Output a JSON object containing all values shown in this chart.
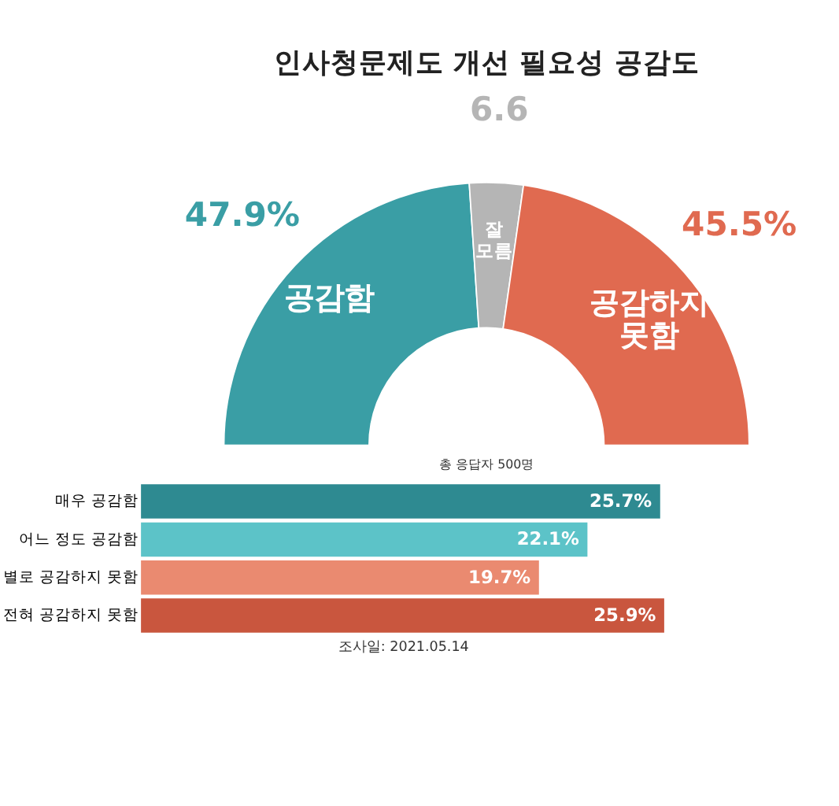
{
  "chart_data": [
    {
      "type": "donut",
      "title": "인사청문제도 개선 필요성 공감도",
      "categories": [
        "공감함",
        "잘 모름",
        "공감하지 못함"
      ],
      "values": [
        47.9,
        6.6,
        45.5
      ],
      "value_labels": [
        "47.9%",
        "6.6",
        "45.5%"
      ],
      "colors": [
        "#3a9ea5",
        "#b5b5b5",
        "#e06a50"
      ],
      "annotations": [
        "총 응답자 500명"
      ]
    },
    {
      "type": "bar",
      "orientation": "horizontal",
      "categories": [
        "매우 공감함",
        "어느 정도 공감함",
        "별로 공감하지 못함",
        "전혀 공감하지 못함"
      ],
      "values": [
        25.7,
        22.1,
        19.7,
        25.9
      ],
      "value_labels": [
        "25.7%",
        "22.1%",
        "19.7%",
        "25.9%"
      ],
      "colors": [
        "#2e8a91",
        "#5cc3c8",
        "#ea8a70",
        "#c9563e"
      ],
      "annotations": [
        "조사일: 2021.05.14"
      ]
    }
  ]
}
